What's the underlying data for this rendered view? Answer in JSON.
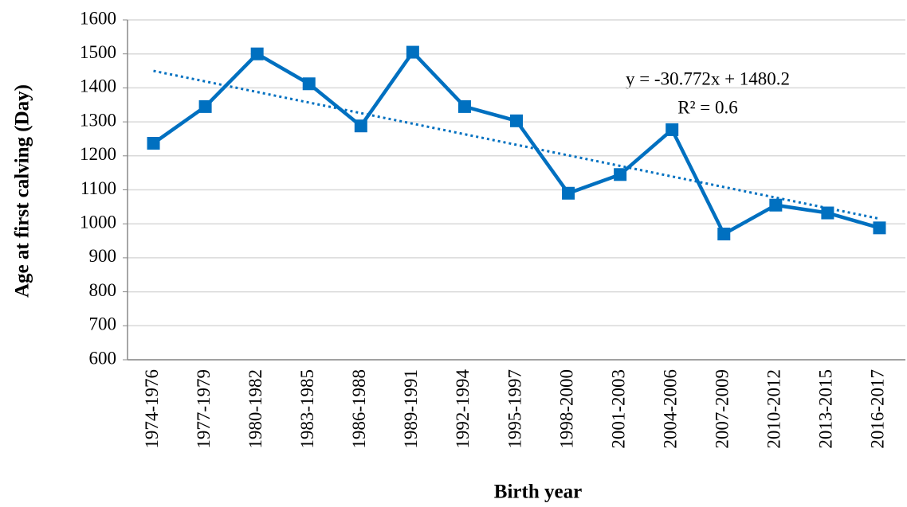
{
  "chart_data": {
    "type": "line",
    "y_label": "Age at first calving (Day)",
    "x_label": "Birth year",
    "categories": [
      "1974-1976",
      "1977-1979",
      "1980-1982",
      "1983-1985",
      "1986-1988",
      "1989-1991",
      "1992-1994",
      "1995-1997",
      "1998-2000",
      "2001-2003",
      "2004-2006",
      "2007-2009",
      "2010-2012",
      "2013-2015",
      "2016-2017"
    ],
    "series": [
      {
        "color": "#0070c0",
        "values": [
          1237,
          1345,
          1500,
          1412,
          1288,
          1505,
          1345,
          1303,
          1090,
          1145,
          1277,
          970,
          1055,
          1032,
          988
        ]
      }
    ],
    "trendline": {
      "equation": "y = -30.772x + 1480.2",
      "r_squared": "R² = 0.6",
      "values": [
        1450,
        1015
      ],
      "color": "#0070c0"
    },
    "ylim": [
      600,
      1600
    ],
    "yticks": [
      600,
      700,
      800,
      900,
      1000,
      1100,
      1200,
      1300,
      1400,
      1500,
      1600
    ],
    "grid": true
  }
}
